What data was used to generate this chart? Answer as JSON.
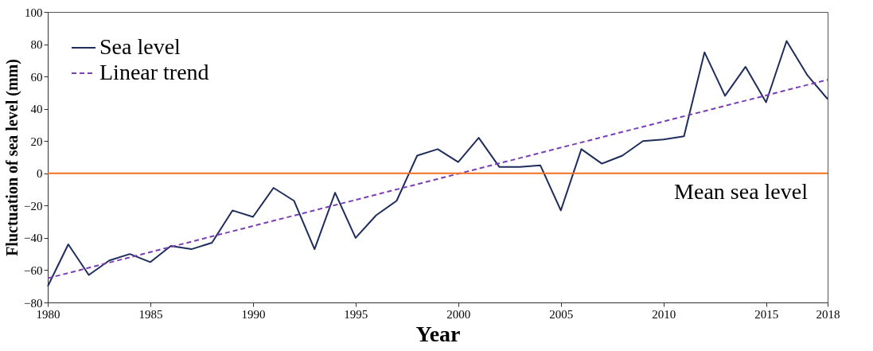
{
  "chart_data": {
    "type": "line",
    "xlabel": "Year",
    "ylabel": "Fluctuation of sea level (mm)",
    "xlim": [
      1980,
      2018
    ],
    "xticks": [
      1980,
      1985,
      1990,
      1995,
      2000,
      2005,
      2010,
      2015,
      2018
    ],
    "ylim": [
      -80,
      100
    ],
    "yticks": [
      -80,
      -60,
      -40,
      -20,
      0,
      20,
      40,
      60,
      80,
      100
    ],
    "x": [
      1980,
      1981,
      1982,
      1983,
      1984,
      1985,
      1986,
      1987,
      1988,
      1989,
      1990,
      1991,
      1992,
      1993,
      1994,
      1995,
      1996,
      1997,
      1998,
      1999,
      2000,
      2001,
      2002,
      2003,
      2004,
      2005,
      2006,
      2007,
      2008,
      2009,
      2010,
      2011,
      2012,
      2013,
      2014,
      2015,
      2016,
      2017,
      2018
    ],
    "series": [
      {
        "name": "Sea level",
        "color": "#1f2d5c",
        "line_style": "solid",
        "values": [
          -70,
          -44,
          -63,
          -54,
          -50,
          -55,
          -45,
          -47,
          -43,
          -23,
          -27,
          -9,
          -17,
          -47,
          -12,
          -40,
          -26,
          -17,
          11,
          15,
          7,
          22,
          4,
          4,
          5,
          -23,
          15,
          6,
          11,
          20,
          21,
          23,
          75,
          48,
          66,
          44,
          82,
          61,
          46
        ]
      },
      {
        "name": "Linear trend",
        "color": "#7b3fb5",
        "line_style": "dashed",
        "x": [
          1980,
          2018
        ],
        "values": [
          -65,
          58
        ]
      }
    ],
    "ref_lines": [
      {
        "axis": "y",
        "value": 0,
        "label": "Mean sea level",
        "color": "#f07020"
      }
    ],
    "legend": "top left",
    "grid": false,
    "marker": "none"
  }
}
